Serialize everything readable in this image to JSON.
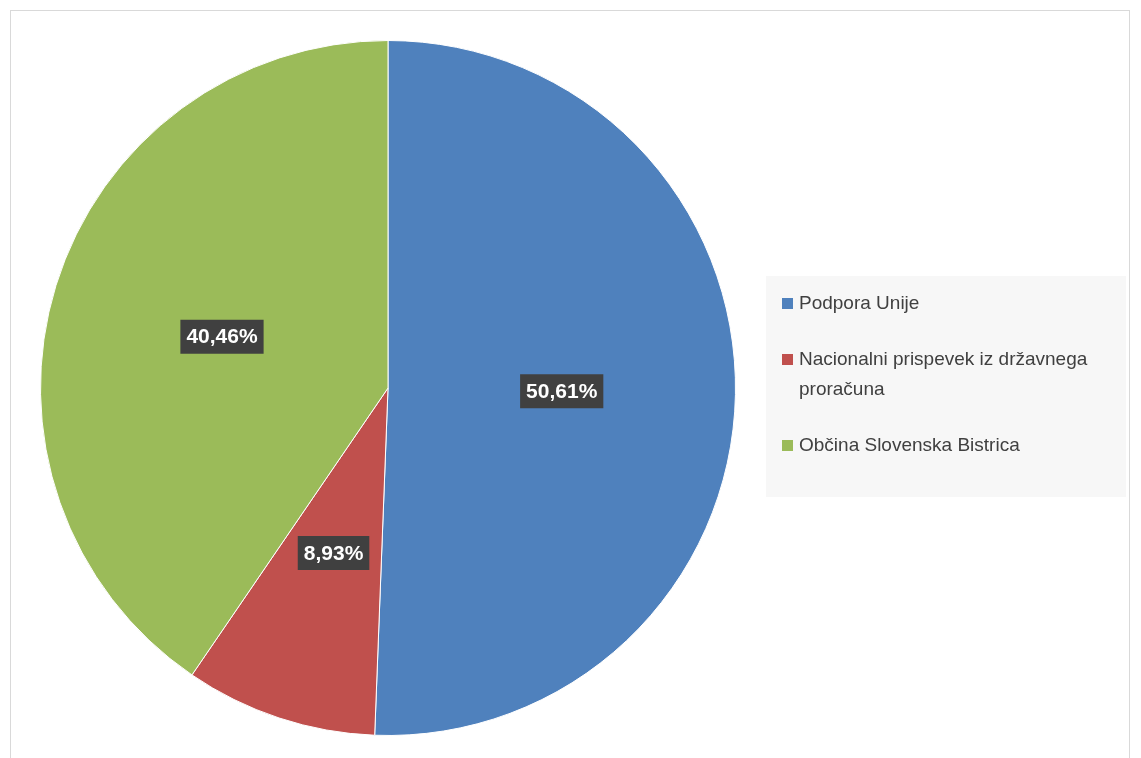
{
  "chart_data": {
    "type": "pie",
    "categories": [
      "Podpora Unije",
      "Nacionalni prispevek iz državnega proračuna",
      "Občina Slovenska Bistrica"
    ],
    "values": [
      50.61,
      8.93,
      40.46
    ],
    "colors": [
      "#4f81bd",
      "#c0504d",
      "#9bbb59"
    ],
    "value_labels": [
      "50,61%",
      "8,93%",
      "40,46%"
    ],
    "legend": "right"
  }
}
